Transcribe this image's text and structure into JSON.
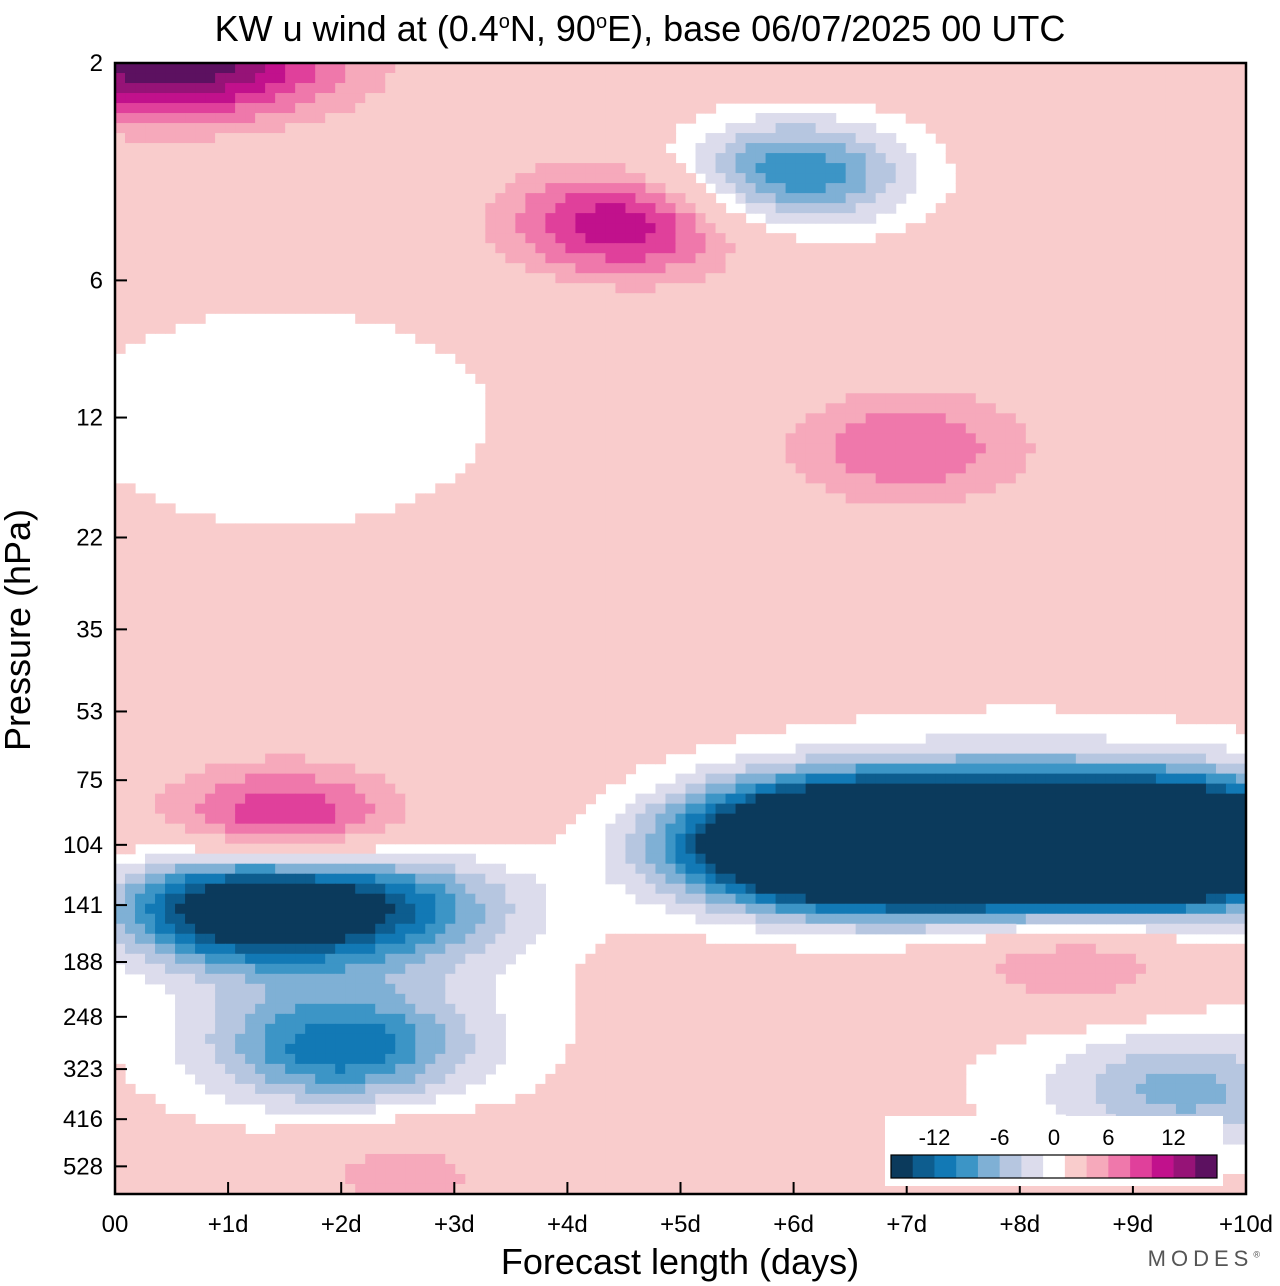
{
  "title": {
    "prefix": "KW u wind at (0.4",
    "deg1": "o",
    "mid": "N, 90",
    "deg2": "o",
    "suffix": "E),  base 06/07/2025  00 UTC"
  },
  "brand": {
    "name": "MODES",
    "mark": "®"
  },
  "chart_data": {
    "type": "heatmap",
    "xlabel": "Forecast length (days)",
    "ylabel": "Pressure (hPa)",
    "x_ticks": [
      "00",
      "+1d",
      "+2d",
      "+3d",
      "+4d",
      "+5d",
      "+6d",
      "+7d",
      "+8d",
      "+9d",
      "+10d"
    ],
    "xlim": [
      0,
      10
    ],
    "y_ticks": [
      "2",
      "6",
      "12",
      "22",
      "35",
      "53",
      "75",
      "104",
      "141",
      "188",
      "248",
      "323",
      "416",
      "528"
    ],
    "y_tick_values": [
      2,
      6,
      12,
      22,
      35,
      53,
      75,
      104,
      141,
      188,
      248,
      323,
      416,
      528
    ],
    "y_axis": "pressure, increasing downward",
    "contour_levels": [
      -16,
      -14,
      -12,
      -10,
      -8,
      -6,
      -4,
      -2,
      2,
      4,
      6,
      8,
      10,
      12,
      14,
      16
    ],
    "colorbar": {
      "labels": [
        "-12",
        "-6",
        "0",
        "6",
        "12"
      ],
      "colors": [
        "#0b3a5c",
        "#0d5d8f",
        "#1279b5",
        "#3c95c6",
        "#7fb0d5",
        "#b6c6e0",
        "#dcdcec",
        "#ffffff",
        "#f9cccc",
        "#f6a9bb",
        "#ef78ab",
        "#e0409b",
        "#c1118c",
        "#961377",
        "#5c1160"
      ]
    },
    "features": [
      {
        "name": "upper westerly core",
        "x": 7.0,
        "p": 104,
        "value": -16
      },
      {
        "name": "upper westerly core",
        "x": 9.0,
        "p": 104,
        "value": -16
      },
      {
        "name": "westerly band",
        "x_range": [
          5.5,
          10
        ],
        "p": 104,
        "value": -12
      },
      {
        "name": "easterly maximum",
        "x": 1.5,
        "p": 95,
        "value": 10
      },
      {
        "name": "westerly maximum",
        "x": 2.0,
        "p": 141,
        "value": -14
      },
      {
        "name": "westerly maximum",
        "x": 1.0,
        "p": 141,
        "value": -12
      },
      {
        "name": "westerly maximum",
        "x": 2.0,
        "p": 290,
        "value": -10
      },
      {
        "name": "stratospheric westerly",
        "x": 6.0,
        "p": 3.5,
        "value": -12
      },
      {
        "name": "stratospheric easterly",
        "x": 4.5,
        "p": 4.5,
        "value": 10
      },
      {
        "name": "stratospheric easterly",
        "x": 0.5,
        "p": 2,
        "value": 14
      },
      {
        "name": "easterly patch",
        "x": 7.0,
        "p": 14,
        "value": 6
      },
      {
        "name": "easterly patch",
        "x": 8.5,
        "p": 188,
        "value": 6
      },
      {
        "name": "westerly patch",
        "x": 9.5,
        "p": 360,
        "value": -6
      },
      {
        "name": "easterly near surface",
        "x": 2.5,
        "p": 528,
        "value": 4
      }
    ]
  }
}
